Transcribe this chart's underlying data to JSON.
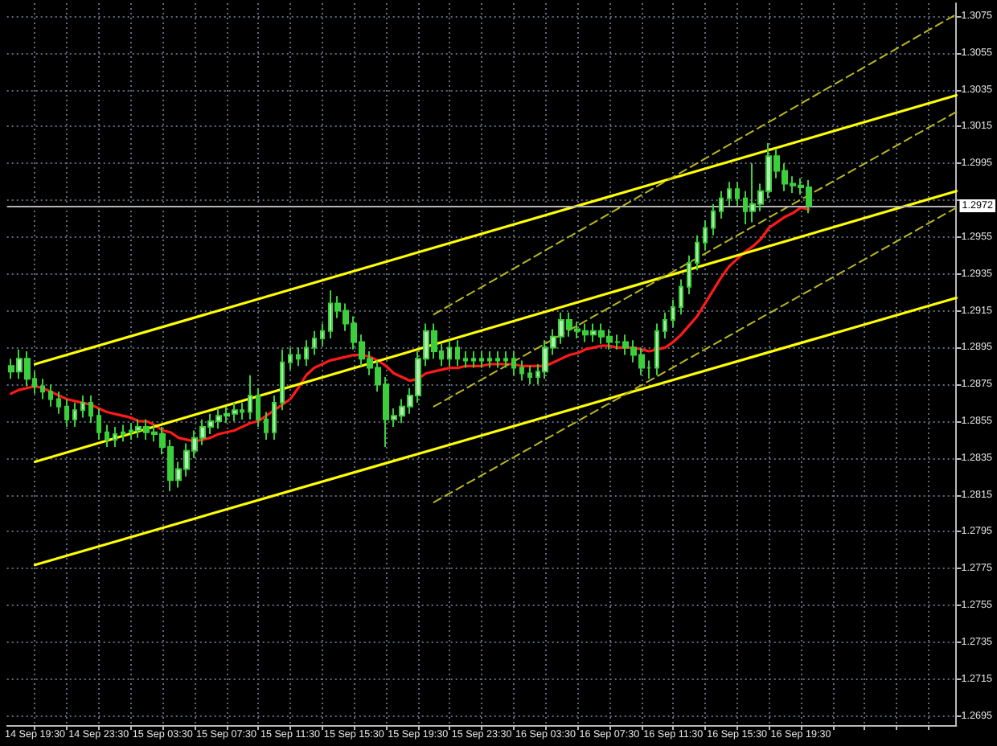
{
  "chart_data": {
    "type": "candlestick",
    "color": "#3ccf3c",
    "x": [
      "--09-14T18:00",
      "--09-14T18:30",
      "--09-14T19:00",
      "--09-14T19:30",
      "--09-14T20:00",
      "--09-14T20:30",
      "--09-14T21:00",
      "--09-14T21:30",
      "--09-14T22:00",
      "--09-14T22:30",
      "--09-14T23:00",
      "--09-14T23:30",
      "--09-15T00:00",
      "--09-15T00:30",
      "--09-15T01:00",
      "--09-15T01:30",
      "--09-15T02:00",
      "--09-15T02:30",
      "--09-15T03:00",
      "--09-15T03:30",
      "--09-15T04:00",
      "--09-15T04:30",
      "--09-15T05:00",
      "--09-15T05:30",
      "--09-15T06:00",
      "--09-15T06:30",
      "--09-15T07:00",
      "--09-15T07:30",
      "--09-15T08:00",
      "--09-15T08:30",
      "--09-15T09:00",
      "--09-15T09:30",
      "--09-15T10:00",
      "--09-15T10:30",
      "--09-15T11:00",
      "--09-15T11:30",
      "--09-15T12:00",
      "--09-15T12:30",
      "--09-15T13:00",
      "--09-15T13:30",
      "--09-15T14:00",
      "--09-15T14:30",
      "--09-15T15:00",
      "--09-15T15:30",
      "--09-15T16:00",
      "--09-15T16:30",
      "--09-15T17:00",
      "--09-15T17:30",
      "--09-15T18:00",
      "--09-15T18:30",
      "--09-15T19:00",
      "--09-15T19:30",
      "--09-15T20:00",
      "--09-15T20:30",
      "--09-15T21:00",
      "--09-15T21:30",
      "--09-15T22:00",
      "--09-15T22:30",
      "--09-15T23:00",
      "--09-15T23:30",
      "--09-16T00:00",
      "--09-16T00:30",
      "--09-16T01:00",
      "--09-16T01:30",
      "--09-16T02:00",
      "--09-16T02:30",
      "--09-16T03:00",
      "--09-16T03:30",
      "--09-16T04:00",
      "--09-16T04:30",
      "--09-16T05:00",
      "--09-16T05:30",
      "--09-16T06:00",
      "--09-16T06:30",
      "--09-16T07:00",
      "--09-16T07:30",
      "--09-16T08:00",
      "--09-16T08:30",
      "--09-16T09:00",
      "--09-16T09:30",
      "--09-16T10:00",
      "--09-16T10:30",
      "--09-16T11:00",
      "--09-16T11:30",
      "--09-16T12:00",
      "--09-16T12:30",
      "--09-16T13:00",
      "--09-16T13:30",
      "--09-16T14:00",
      "--09-16T14:30",
      "--09-16T15:00",
      "--09-16T15:30",
      "--09-16T16:00",
      "--09-16T16:30",
      "--09-16T17:00",
      "--09-16T17:30",
      "--09-16T18:00",
      "--09-16T18:30",
      "--09-16T19:00",
      "--09-16T19:30",
      "--09-16T20:00"
    ],
    "ohlc": [
      [
        1.2885,
        1.2889,
        1.2878,
        1.2882
      ],
      [
        1.2882,
        1.2894,
        1.2878,
        1.2889
      ],
      [
        1.2889,
        1.2893,
        1.2874,
        1.2878
      ],
      [
        1.2878,
        1.2882,
        1.287,
        1.2874
      ],
      [
        1.2874,
        1.2878,
        1.2867,
        1.2871
      ],
      [
        1.2871,
        1.2875,
        1.2863,
        1.2867
      ],
      [
        1.2867,
        1.2871,
        1.2859,
        1.2863
      ],
      [
        1.2863,
        1.2867,
        1.2852,
        1.2856
      ],
      [
        1.2856,
        1.2865,
        1.2852,
        1.2861
      ],
      [
        1.2861,
        1.2869,
        1.2857,
        1.2865
      ],
      [
        1.2865,
        1.2869,
        1.2854,
        1.2858
      ],
      [
        1.2858,
        1.2862,
        1.2845,
        1.2849
      ],
      [
        1.2849,
        1.2853,
        1.2841,
        1.2845
      ],
      [
        1.2845,
        1.2852,
        1.2841,
        1.2848
      ],
      [
        1.2848,
        1.2853,
        1.2844,
        1.2849
      ],
      [
        1.2849,
        1.2854,
        1.2845,
        1.285
      ],
      [
        1.285,
        1.2856,
        1.2846,
        1.2852
      ],
      [
        1.2852,
        1.2856,
        1.2845,
        1.2849
      ],
      [
        1.2849,
        1.2853,
        1.2844,
        1.2848
      ],
      [
        1.2848,
        1.2852,
        1.2837,
        1.2841
      ],
      [
        1.2841,
        1.2845,
        1.2817,
        1.2823
      ],
      [
        1.2823,
        1.2833,
        1.2819,
        1.2829
      ],
      [
        1.2829,
        1.2843,
        1.2825,
        1.2839
      ],
      [
        1.2839,
        1.285,
        1.2835,
        1.2846
      ],
      [
        1.2846,
        1.2856,
        1.2842,
        1.2852
      ],
      [
        1.2852,
        1.2859,
        1.2848,
        1.2855
      ],
      [
        1.2855,
        1.2862,
        1.2851,
        1.2858
      ],
      [
        1.2858,
        1.2863,
        1.2854,
        1.2859
      ],
      [
        1.2859,
        1.2865,
        1.2855,
        1.2861
      ],
      [
        1.2861,
        1.2865,
        1.2856,
        1.286
      ],
      [
        1.286,
        1.288,
        1.2856,
        1.2869
      ],
      [
        1.2869,
        1.2873,
        1.2852,
        1.2856
      ],
      [
        1.2856,
        1.286,
        1.2845,
        1.2849
      ],
      [
        1.2849,
        1.2869,
        1.2845,
        1.2865
      ],
      [
        1.2865,
        1.2894,
        1.2861,
        1.2887
      ],
      [
        1.2887,
        1.2895,
        1.2883,
        1.2891
      ],
      [
        1.2891,
        1.2895,
        1.2885,
        1.2889
      ],
      [
        1.2889,
        1.2899,
        1.2885,
        1.2895
      ],
      [
        1.2895,
        1.2904,
        1.2891,
        1.29
      ],
      [
        1.29,
        1.2908,
        1.2896,
        1.2904
      ],
      [
        1.2904,
        1.2926,
        1.29,
        1.2919
      ],
      [
        1.2919,
        1.2923,
        1.2911,
        1.2915
      ],
      [
        1.2915,
        1.2919,
        1.2904,
        1.2908
      ],
      [
        1.2908,
        1.2912,
        1.2894,
        1.2898
      ],
      [
        1.2898,
        1.2902,
        1.2885,
        1.2889
      ],
      [
        1.2889,
        1.2893,
        1.288,
        1.2884
      ],
      [
        1.2884,
        1.2888,
        1.2871,
        1.2875
      ],
      [
        1.2875,
        1.2879,
        1.2841,
        1.2856
      ],
      [
        1.2856,
        1.2862,
        1.2852,
        1.2858
      ],
      [
        1.2858,
        1.2867,
        1.2854,
        1.2863
      ],
      [
        1.2863,
        1.2873,
        1.2859,
        1.2869
      ],
      [
        1.2869,
        1.2893,
        1.2865,
        1.2889
      ],
      [
        1.2889,
        1.2908,
        1.2885,
        1.2904
      ],
      [
        1.2904,
        1.2908,
        1.2889,
        1.2893
      ],
      [
        1.2893,
        1.2897,
        1.2885,
        1.2889
      ],
      [
        1.2889,
        1.2899,
        1.2885,
        1.2895
      ],
      [
        1.2895,
        1.2899,
        1.2885,
        1.2889
      ],
      [
        1.2889,
        1.2893,
        1.2884,
        1.2888
      ],
      [
        1.2888,
        1.2893,
        1.2884,
        1.2889
      ],
      [
        1.2889,
        1.2893,
        1.2884,
        1.2888
      ],
      [
        1.2888,
        1.2893,
        1.2884,
        1.2889
      ],
      [
        1.2889,
        1.2893,
        1.2884,
        1.2888
      ],
      [
        1.2888,
        1.2893,
        1.2884,
        1.2889
      ],
      [
        1.2889,
        1.2893,
        1.288,
        1.2884
      ],
      [
        1.2884,
        1.2888,
        1.2877,
        1.2881
      ],
      [
        1.2881,
        1.2885,
        1.2875,
        1.2879
      ],
      [
        1.2879,
        1.2886,
        1.2875,
        1.2882
      ],
      [
        1.2882,
        1.2899,
        1.2878,
        1.2895
      ],
      [
        1.2895,
        1.2905,
        1.2891,
        1.2901
      ],
      [
        1.2901,
        1.2914,
        1.2897,
        1.291
      ],
      [
        1.291,
        1.2914,
        1.2901,
        1.2905
      ],
      [
        1.2905,
        1.2909,
        1.29,
        1.2904
      ],
      [
        1.2904,
        1.2908,
        1.2898,
        1.2902
      ],
      [
        1.2902,
        1.2908,
        1.2898,
        1.2904
      ],
      [
        1.2904,
        1.2908,
        1.2897,
        1.2901
      ],
      [
        1.2901,
        1.2905,
        1.2894,
        1.2898
      ],
      [
        1.2898,
        1.2902,
        1.2894,
        1.2898
      ],
      [
        1.2898,
        1.2902,
        1.2891,
        1.2895
      ],
      [
        1.2895,
        1.2899,
        1.2887,
        1.2891
      ],
      [
        1.2891,
        1.2895,
        1.288,
        1.2884
      ],
      [
        1.2884,
        1.2888,
        1.2878,
        1.2884
      ],
      [
        1.2884,
        1.2908,
        1.288,
        1.2904
      ],
      [
        1.2904,
        1.2914,
        1.29,
        1.291
      ],
      [
        1.291,
        1.2921,
        1.2906,
        1.2917
      ],
      [
        1.2917,
        1.2932,
        1.2913,
        1.2928
      ],
      [
        1.2928,
        1.2945,
        1.2924,
        1.2941
      ],
      [
        1.2941,
        1.2956,
        1.2937,
        1.2952
      ],
      [
        1.2952,
        1.2964,
        1.2948,
        1.296
      ],
      [
        1.296,
        1.2973,
        1.2956,
        1.2969
      ],
      [
        1.2969,
        1.298,
        1.2965,
        1.2976
      ],
      [
        1.2976,
        1.2985,
        1.2972,
        1.2981
      ],
      [
        1.2981,
        1.2985,
        1.2972,
        1.2976
      ],
      [
        1.2976,
        1.298,
        1.2962,
        1.2969
      ],
      [
        1.2969,
        1.2995,
        1.2963,
        1.2973
      ],
      [
        1.2973,
        1.2984,
        1.2969,
        1.298
      ],
      [
        1.298,
        1.3006,
        1.2976,
        1.2999
      ],
      [
        1.2999,
        1.3003,
        1.2987,
        1.2991
      ],
      [
        1.2991,
        1.2995,
        1.298,
        1.2984
      ],
      [
        1.2984,
        1.2988,
        1.2979,
        1.2983
      ],
      [
        1.2983,
        1.2987,
        1.2978,
        1.2982
      ],
      [
        1.2982,
        1.2986,
        1.2968,
        1.2972
      ]
    ],
    "series": [
      {
        "type": "line",
        "color": "#ff1a1a",
        "values": [
          1.287,
          1.2872,
          1.2873,
          1.2874,
          1.2873,
          1.2871,
          1.2869,
          1.2867,
          1.2866,
          1.2865,
          1.2864,
          1.2862,
          1.286,
          1.2859,
          1.2858,
          1.2857,
          1.2855,
          1.2855,
          1.2853,
          1.285,
          1.2849,
          1.2846,
          1.2845,
          1.2844,
          1.2845,
          1.2846,
          1.2848,
          1.2849,
          1.285,
          1.2852,
          1.2854,
          1.2855,
          1.2858,
          1.2861,
          1.2864,
          1.2867,
          1.2873,
          1.288,
          1.2884,
          1.2886,
          1.2888,
          1.2889,
          1.289,
          1.2891,
          1.2891,
          1.289,
          1.2888,
          1.2885,
          1.2881,
          1.2879,
          1.2877,
          1.2878,
          1.2881,
          1.2882,
          1.2883,
          1.2884,
          1.2884,
          1.2885,
          1.2885,
          1.2885,
          1.2886,
          1.2886,
          1.2886,
          1.2886,
          1.2885,
          1.2885,
          1.2885,
          1.2885,
          1.2887,
          1.2889,
          1.2891,
          1.2892,
          1.2894,
          1.2895,
          1.2896,
          1.2896,
          1.2895,
          1.2895,
          1.2895,
          1.2894,
          1.2893,
          1.2894,
          1.2895,
          1.2898,
          1.2902,
          1.2907,
          1.2912,
          1.2919,
          1.2926,
          1.2933,
          1.2939,
          1.2943,
          1.2947,
          1.295,
          1.2954,
          1.296,
          1.2963,
          1.2966,
          1.2968,
          1.2971,
          1.297
        ]
      },
      {
        "type": "line",
        "color": "#ffff00",
        "line_style": "solid",
        "x": [
          "--09-14T19:30",
          "--09-17T05:15"
        ],
        "values": [
          1.2886,
          1.3032
        ]
      },
      {
        "type": "line",
        "color": "#ffff00",
        "line_style": "solid",
        "x": [
          "--09-14T19:30",
          "--09-17T05:15"
        ],
        "values": [
          1.2833,
          1.298
        ]
      },
      {
        "type": "line",
        "color": "#ffff00",
        "line_style": "solid",
        "x": [
          "--09-14T19:30",
          "--09-17T05:15"
        ],
        "values": [
          1.2777,
          1.2922
        ]
      },
      {
        "type": "line",
        "color": "#b9b91e",
        "line_style": "dashed",
        "x": [
          "--09-15T20:30",
          "--09-17T05:15"
        ],
        "values": [
          1.2913,
          1.3076
        ]
      },
      {
        "type": "line",
        "color": "#b9b91e",
        "line_style": "dashed",
        "x": [
          "--09-15T20:30",
          "--09-17T05:15"
        ],
        "values": [
          1.2863,
          1.3023
        ]
      },
      {
        "type": "line",
        "color": "#b9b91e",
        "line_style": "dashed",
        "x": [
          "--09-15T20:30",
          "--09-17T05:15"
        ],
        "values": [
          1.2811,
          1.2971
        ]
      }
    ],
    "ref_lines": [
      {
        "axis": "y",
        "value": 1.2972,
        "label": "1.2972",
        "color": "#b4b4b4"
      }
    ],
    "xlim": [
      "--09-14T17:45",
      "--09-17T05:15"
    ],
    "xticks": [
      {
        "value": "--09-14T19:30",
        "label": "14 Sep 19:30"
      },
      {
        "value": "--09-14T21:30",
        "label": null
      },
      {
        "value": "--09-14T23:30",
        "label": "14 Sep 23:30"
      },
      {
        "value": "--09-15T01:30",
        "label": null
      },
      {
        "value": "--09-15T03:30",
        "label": "15 Sep 03:30"
      },
      {
        "value": "--09-15T05:30",
        "label": null
      },
      {
        "value": "--09-15T07:30",
        "label": "15 Sep 07:30"
      },
      {
        "value": "--09-15T09:30",
        "label": null
      },
      {
        "value": "--09-15T11:30",
        "label": "15 Sep 11:30"
      },
      {
        "value": "--09-15T13:30",
        "label": null
      },
      {
        "value": "--09-15T15:30",
        "label": "15 Sep 15:30"
      },
      {
        "value": "--09-15T17:30",
        "label": null
      },
      {
        "value": "--09-15T19:30",
        "label": "15 Sep 19:30"
      },
      {
        "value": "--09-15T21:30",
        "label": null
      },
      {
        "value": "--09-15T23:30",
        "label": "15 Sep 23:30"
      },
      {
        "value": "--09-16T01:30",
        "label": null
      },
      {
        "value": "--09-16T03:30",
        "label": "16 Sep 03:30"
      },
      {
        "value": "--09-16T05:30",
        "label": null
      },
      {
        "value": "--09-16T07:30",
        "label": "16 Sep 07:30"
      },
      {
        "value": "--09-16T09:30",
        "label": null
      },
      {
        "value": "--09-16T11:30",
        "label": "16 Sep 11:30"
      },
      {
        "value": "--09-16T13:30",
        "label": null
      },
      {
        "value": "--09-16T15:30",
        "label": "16 Sep 15:30"
      },
      {
        "value": "--09-16T17:30",
        "label": null
      },
      {
        "value": "--09-16T19:30",
        "label": "16 Sep 19:30"
      },
      {
        "value": "--09-16T21:30",
        "label": null
      },
      {
        "value": "--09-16T23:30",
        "label": null
      },
      {
        "value": "--09-17T01:30",
        "label": null
      },
      {
        "value": "--09-17T03:30",
        "label": null
      }
    ],
    "ylim": [
      1.269,
      1.3082
    ],
    "yticks": [
      1.2695,
      1.2715,
      1.2735,
      1.2755,
      1.2775,
      1.2795,
      1.2815,
      1.2835,
      1.2855,
      1.2875,
      1.2895,
      1.2915,
      1.2935,
      1.2955,
      {
        "value": 1.2975,
        "label": null
      },
      1.2995,
      1.3015,
      1.3035,
      1.3055,
      1.3075
    ],
    "grid": true
  }
}
